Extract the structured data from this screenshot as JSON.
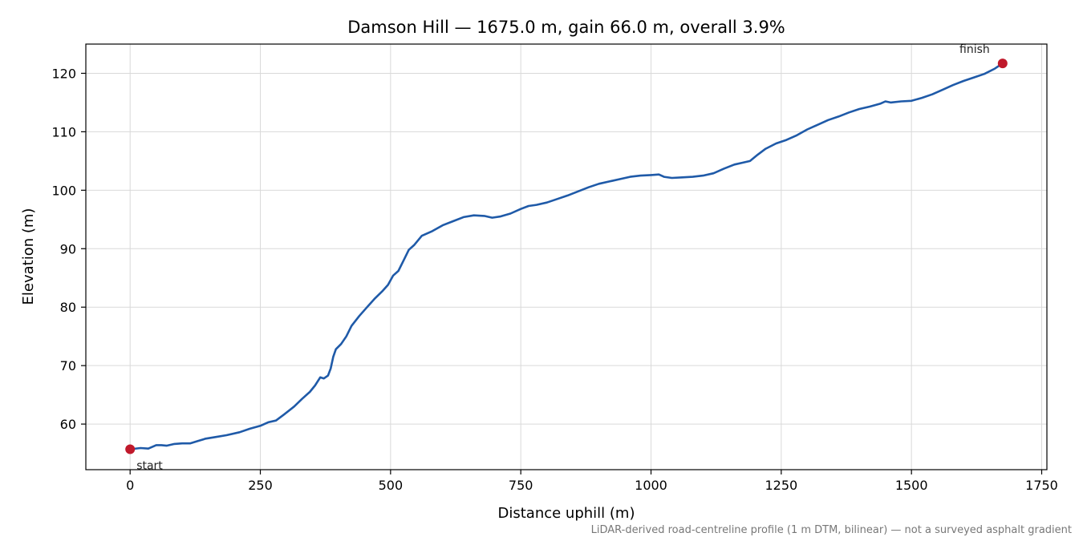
{
  "chart_data": {
    "type": "line",
    "title": "Damson Hill — 1675.0 m, gain 66.0 m, overall 3.9%",
    "xlabel": "Distance uphill (m)",
    "ylabel": "Elevation (m)",
    "xlim": [
      -85,
      1760
    ],
    "ylim": [
      52.2,
      125.0
    ],
    "xticks": [
      0,
      250,
      500,
      750,
      1000,
      1250,
      1500,
      1750
    ],
    "yticks": [
      60,
      70,
      80,
      90,
      100,
      110,
      120
    ],
    "grid": true,
    "caption": "LiDAR-derived road-centreline profile (1 m DTM, bilinear) — not a surveyed asphalt gradient",
    "series": [
      {
        "color": "#1f5aa8",
        "points": [
          [
            0,
            55.7
          ],
          [
            20,
            55.9
          ],
          [
            35,
            55.8
          ],
          [
            50,
            56.4
          ],
          [
            60,
            56.4
          ],
          [
            70,
            56.3
          ],
          [
            85,
            56.6
          ],
          [
            100,
            56.7
          ],
          [
            115,
            56.7
          ],
          [
            130,
            57.1
          ],
          [
            145,
            57.5
          ],
          [
            165,
            57.8
          ],
          [
            185,
            58.1
          ],
          [
            210,
            58.6
          ],
          [
            230,
            59.2
          ],
          [
            250,
            59.7
          ],
          [
            265,
            60.3
          ],
          [
            280,
            60.6
          ],
          [
            295,
            61.6
          ],
          [
            315,
            63.0
          ],
          [
            330,
            64.3
          ],
          [
            345,
            65.5
          ],
          [
            355,
            66.6
          ],
          [
            365,
            68.0
          ],
          [
            372,
            67.8
          ],
          [
            380,
            68.3
          ],
          [
            385,
            69.5
          ],
          [
            390,
            71.5
          ],
          [
            395,
            72.8
          ],
          [
            405,
            73.7
          ],
          [
            415,
            75.0
          ],
          [
            425,
            76.8
          ],
          [
            440,
            78.5
          ],
          [
            455,
            80.0
          ],
          [
            470,
            81.5
          ],
          [
            485,
            82.8
          ],
          [
            495,
            83.8
          ],
          [
            505,
            85.4
          ],
          [
            515,
            86.2
          ],
          [
            525,
            88.0
          ],
          [
            535,
            89.8
          ],
          [
            545,
            90.6
          ],
          [
            560,
            92.2
          ],
          [
            580,
            93.0
          ],
          [
            600,
            94.0
          ],
          [
            620,
            94.7
          ],
          [
            640,
            95.4
          ],
          [
            660,
            95.7
          ],
          [
            680,
            95.6
          ],
          [
            695,
            95.3
          ],
          [
            710,
            95.5
          ],
          [
            730,
            96.0
          ],
          [
            750,
            96.8
          ],
          [
            765,
            97.3
          ],
          [
            780,
            97.5
          ],
          [
            800,
            97.9
          ],
          [
            820,
            98.5
          ],
          [
            840,
            99.1
          ],
          [
            860,
            99.8
          ],
          [
            880,
            100.5
          ],
          [
            900,
            101.1
          ],
          [
            920,
            101.5
          ],
          [
            940,
            101.9
          ],
          [
            960,
            102.3
          ],
          [
            980,
            102.5
          ],
          [
            1000,
            102.6
          ],
          [
            1015,
            102.7
          ],
          [
            1025,
            102.3
          ],
          [
            1040,
            102.1
          ],
          [
            1060,
            102.2
          ],
          [
            1080,
            102.3
          ],
          [
            1100,
            102.5
          ],
          [
            1120,
            102.9
          ],
          [
            1140,
            103.7
          ],
          [
            1160,
            104.4
          ],
          [
            1175,
            104.7
          ],
          [
            1190,
            105.0
          ],
          [
            1205,
            106.1
          ],
          [
            1220,
            107.1
          ],
          [
            1240,
            108.0
          ],
          [
            1260,
            108.6
          ],
          [
            1280,
            109.4
          ],
          [
            1300,
            110.4
          ],
          [
            1320,
            111.2
          ],
          [
            1340,
            112.0
          ],
          [
            1360,
            112.6
          ],
          [
            1380,
            113.3
          ],
          [
            1400,
            113.9
          ],
          [
            1420,
            114.3
          ],
          [
            1440,
            114.8
          ],
          [
            1450,
            115.2
          ],
          [
            1460,
            115.0
          ],
          [
            1480,
            115.2
          ],
          [
            1500,
            115.3
          ],
          [
            1520,
            115.8
          ],
          [
            1540,
            116.4
          ],
          [
            1560,
            117.2
          ],
          [
            1580,
            118.0
          ],
          [
            1600,
            118.7
          ],
          [
            1620,
            119.3
          ],
          [
            1640,
            119.9
          ],
          [
            1660,
            120.8
          ],
          [
            1675,
            121.7
          ]
        ]
      }
    ],
    "annotations": [
      {
        "text": "start",
        "x": 0,
        "y": 55.7
      },
      {
        "text": "finish",
        "x": 1675,
        "y": 121.7
      }
    ]
  }
}
